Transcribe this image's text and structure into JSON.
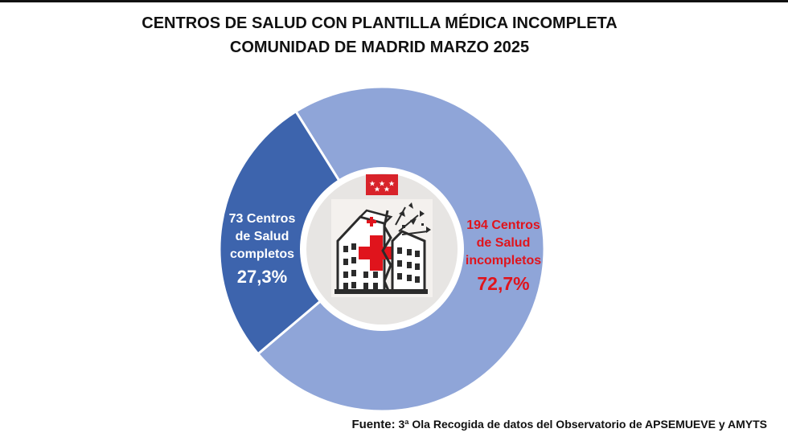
{
  "title": {
    "line1": "CENTROS DE SALUD CON PLANTILLA MÉDICA INCOMPLETA",
    "line2": "COMUNIDAD DE MADRID MARZO 2025"
  },
  "chart_data": {
    "type": "pie",
    "variant": "donut",
    "series": [
      {
        "count_text": "73 Centros de Salud completos",
        "value": 27.3,
        "percent_label": "27,3%",
        "color": "#3d64ad",
        "text_color": "#ffffff"
      },
      {
        "count_text": "194 Centros de Salud incompletos",
        "value": 72.7,
        "percent_label": "72,7%",
        "color": "#8fa5d8",
        "text_color": "#e0141c"
      }
    ],
    "center_icon": "damaged-hospital-icon",
    "center_flag": "madrid-flag-icon"
  },
  "labels": {
    "left": {
      "line1": "73 Centros",
      "line2": "de Salud",
      "line3": "completos",
      "pct": "27,3%"
    },
    "right": {
      "line1": "194 Centros",
      "line2": "de Salud",
      "line3": "incompletos",
      "pct": "72,7%"
    }
  },
  "source": {
    "key": "Fuente:",
    "text": " 3ª Ola Recogida de datos del Observatorio de APSEMUEVE y AMYTS"
  },
  "colors": {
    "flag_red": "#d8232a",
    "cross_red": "#e0141c",
    "icon_dark": "#2b2b2b"
  }
}
